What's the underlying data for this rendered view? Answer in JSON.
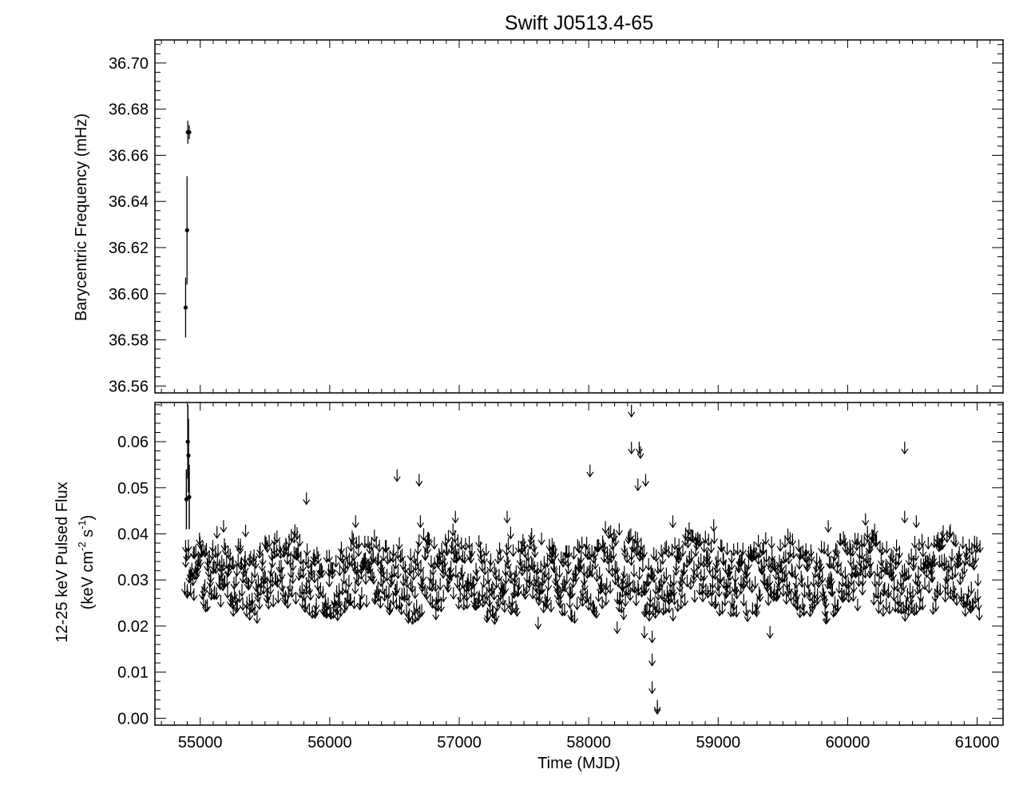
{
  "chart_data": [
    {
      "panel": "top",
      "type": "scatter",
      "title": "Swift J0513.4-65",
      "ylabel": "Barycentric Frequency (mHz)",
      "xlim": [
        54650,
        61200
      ],
      "ylim": [
        36.557,
        36.71
      ],
      "xticks": [
        55000,
        56000,
        57000,
        58000,
        59000,
        60000,
        61000
      ],
      "yticks": [
        36.56,
        36.58,
        36.6,
        36.62,
        36.64,
        36.66,
        36.68,
        36.7
      ],
      "ytick_labels": [
        "36.56",
        "36.58",
        "36.60",
        "36.62",
        "36.64",
        "36.66",
        "36.68",
        "36.70"
      ],
      "series": [
        {
          "marker": "point-with-errorbar",
          "points": [
            {
              "x": 54887,
              "y": 36.594,
              "err": 0.013
            },
            {
              "x": 54898,
              "y": 36.6275,
              "err": 0.0235
            },
            {
              "x": 54904,
              "y": 36.67,
              "err": 0.005
            },
            {
              "x": 54915,
              "y": 36.67,
              "err": 0.003
            }
          ]
        }
      ]
    },
    {
      "panel": "bottom",
      "type": "scatter",
      "xlabel": "Time (MJD)",
      "ylabel_line1": "12-25 keV Pulsed Flux",
      "ylabel_line2_parts": [
        "(keV cm",
        "-2",
        " s",
        "-1",
        ")"
      ],
      "xlim": [
        54650,
        61200
      ],
      "ylim": [
        -0.0015,
        0.0685
      ],
      "xticks": [
        55000,
        56000,
        57000,
        58000,
        59000,
        60000,
        61000
      ],
      "yticks": [
        0.0,
        0.01,
        0.02,
        0.03,
        0.04,
        0.05,
        0.06
      ],
      "ytick_labels": [
        "0.00",
        "0.01",
        "0.02",
        "0.03",
        "0.04",
        "0.05",
        "0.06"
      ],
      "detections": [
        {
          "x": 54893,
          "y": 0.0475,
          "err": 0.0065
        },
        {
          "x": 54904,
          "y": 0.06,
          "err": 0.008
        },
        {
          "x": 54909,
          "y": 0.057,
          "err": 0.008
        },
        {
          "x": 54915,
          "y": 0.048,
          "err": 0.007
        }
      ],
      "upper_limits": {
        "count_approx": 1400,
        "typical_range": [
          0.025,
          0.04
        ],
        "notable": [
          [
            55180,
            0.043
          ],
          [
            55350,
            0.042
          ],
          [
            55820,
            0.049
          ],
          [
            56200,
            0.044
          ],
          [
            56520,
            0.054
          ],
          [
            56690,
            0.053
          ],
          [
            56700,
            0.044
          ],
          [
            56970,
            0.045
          ],
          [
            57370,
            0.045
          ],
          [
            58010,
            0.055
          ],
          [
            58330,
            0.068
          ],
          [
            58330,
            0.06
          ],
          [
            58390,
            0.06
          ],
          [
            58400,
            0.059
          ],
          [
            58380,
            0.052
          ],
          [
            58440,
            0.053
          ],
          [
            58650,
            0.044
          ],
          [
            59850,
            0.043
          ],
          [
            60440,
            0.06
          ],
          [
            60440,
            0.045
          ],
          [
            60530,
            0.044
          ],
          [
            58220,
            0.021
          ],
          [
            58270,
            0.024
          ],
          [
            58430,
            0.02
          ],
          [
            58490,
            0.019
          ],
          [
            58490,
            0.014
          ],
          [
            58490,
            0.008
          ],
          [
            58530,
            0.004
          ],
          [
            58530,
            0.0035
          ],
          [
            59400,
            0.02
          ],
          [
            57610,
            0.022
          ],
          [
            56820,
            0.024
          ]
        ]
      }
    }
  ]
}
